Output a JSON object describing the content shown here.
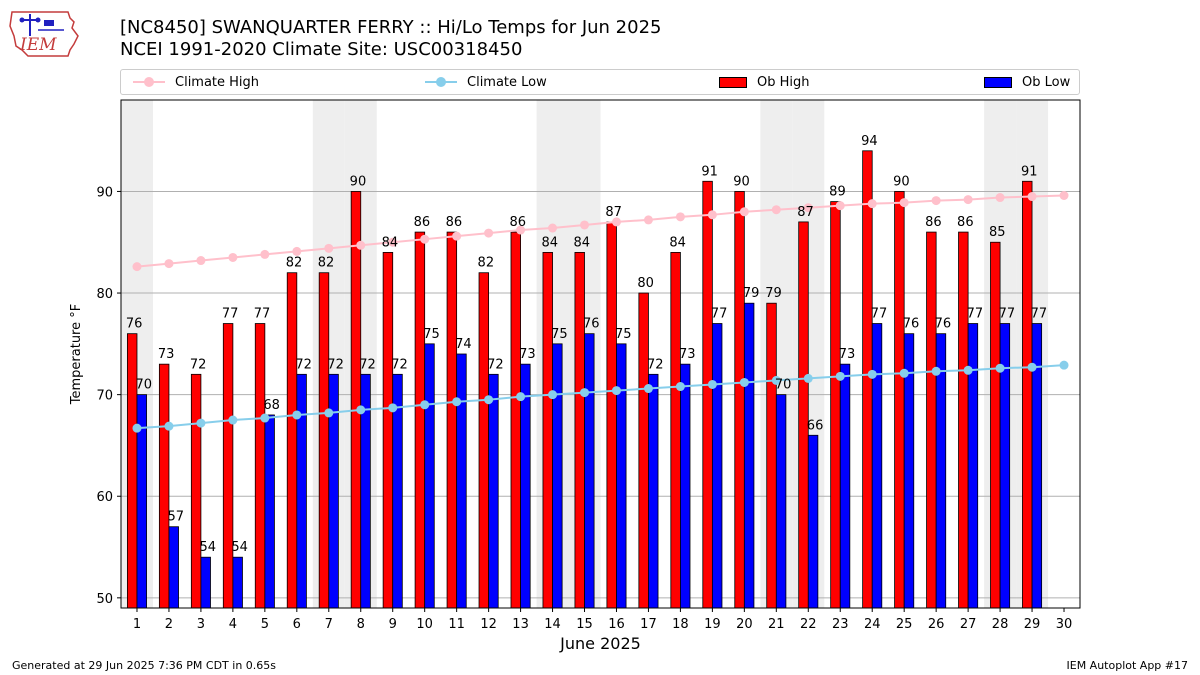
{
  "header": {
    "title_line1": "[NC8450] SWANQUARTER FERRY :: Hi/Lo Temps for Jun 2025",
    "title_line2": "NCEI 1991-2020 Climate Site: USC00318450",
    "logo_text": "IEM"
  },
  "legend": {
    "items": [
      {
        "label": "Climate High",
        "kind": "line",
        "color": "#ffc0cb"
      },
      {
        "label": "Climate Low",
        "kind": "line",
        "color": "#87ceeb"
      },
      {
        "label": "Ob High",
        "kind": "box",
        "color": "#ff0000"
      },
      {
        "label": "Ob Low",
        "kind": "box",
        "color": "#0000ff"
      }
    ]
  },
  "footer": {
    "left": "Generated at 29 Jun 2025 7:36 PM CDT in 0.65s",
    "right": "IEM Autoplot App #17"
  },
  "chart_data": {
    "type": "bar",
    "xlabel": "June 2025",
    "ylabel": "Temperature °F",
    "ylim": [
      49,
      99
    ],
    "yticks": [
      50,
      60,
      70,
      80,
      90
    ],
    "x": [
      1,
      2,
      3,
      4,
      5,
      6,
      7,
      8,
      9,
      10,
      11,
      12,
      13,
      14,
      15,
      16,
      17,
      18,
      19,
      20,
      21,
      22,
      23,
      24,
      25,
      26,
      27,
      28,
      29,
      30
    ],
    "weekend_days": [
      1,
      7,
      8,
      14,
      15,
      21,
      22,
      28,
      29
    ],
    "grid": "horizontal",
    "series": [
      {
        "name": "Ob High",
        "kind": "bar",
        "color": "#ff0000",
        "values": [
          76,
          73,
          72,
          77,
          77,
          82,
          82,
          90,
          84,
          86,
          86,
          82,
          86,
          84,
          84,
          87,
          80,
          84,
          91,
          90,
          79,
          87,
          89,
          94,
          90,
          86,
          86,
          85,
          91,
          null
        ]
      },
      {
        "name": "Ob Low",
        "kind": "bar",
        "color": "#0000ff",
        "values": [
          70,
          57,
          54,
          54,
          68,
          72,
          72,
          72,
          72,
          75,
          74,
          72,
          73,
          75,
          76,
          75,
          72,
          73,
          77,
          79,
          70,
          66,
          73,
          77,
          76,
          76,
          77,
          77,
          77,
          null
        ]
      },
      {
        "name": "Climate High",
        "kind": "line",
        "color": "#ffc0cb",
        "values": [
          82.6,
          82.9,
          83.2,
          83.5,
          83.8,
          84.1,
          84.4,
          84.7,
          85.0,
          85.3,
          85.6,
          85.9,
          86.2,
          86.4,
          86.7,
          87.0,
          87.2,
          87.5,
          87.7,
          88.0,
          88.2,
          88.4,
          88.6,
          88.8,
          88.9,
          89.1,
          89.2,
          89.4,
          89.5,
          89.6
        ]
      },
      {
        "name": "Climate Low",
        "kind": "line",
        "color": "#87ceeb",
        "values": [
          66.7,
          66.9,
          67.2,
          67.5,
          67.7,
          68.0,
          68.2,
          68.5,
          68.7,
          69.0,
          69.3,
          69.5,
          69.8,
          70.0,
          70.2,
          70.4,
          70.6,
          70.8,
          71.0,
          71.2,
          71.4,
          71.6,
          71.8,
          72.0,
          72.1,
          72.3,
          72.4,
          72.6,
          72.7,
          72.9
        ]
      }
    ]
  }
}
